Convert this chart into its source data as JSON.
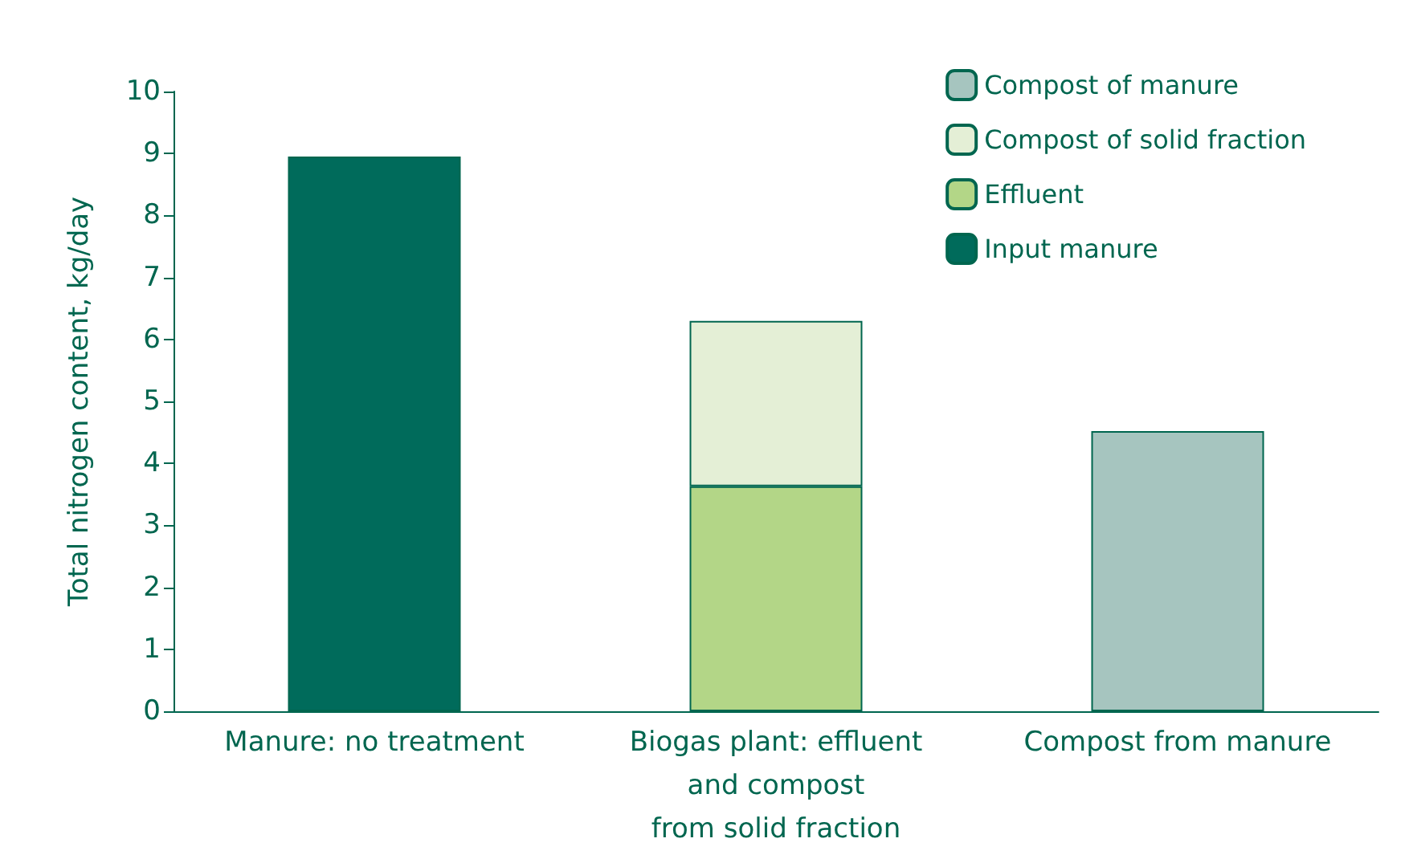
{
  "chart_data": {
    "type": "bar",
    "stacked": true,
    "ylabel": "Total nitrogen content, kg/day",
    "categories": [
      "Manure: no treatment",
      "Biogas plant: effluent\nand compost\nfrom solid fraction",
      "Compost from manure"
    ],
    "series": [
      {
        "name": "Input manure",
        "color": "#006b5b",
        "values": [
          8.95,
          null,
          null
        ]
      },
      {
        "name": "Effluent",
        "color": "#b3d687",
        "values": [
          null,
          3.63,
          null
        ]
      },
      {
        "name": "Compost of solid fraction",
        "color": "#e4efd6",
        "values": [
          null,
          2.67,
          null
        ]
      },
      {
        "name": "Compost of manure",
        "color": "#a6c5bf",
        "values": [
          null,
          null,
          4.52
        ]
      }
    ],
    "ylim": [
      0,
      10
    ],
    "yticks": [
      0,
      1,
      2,
      3,
      4,
      5,
      6,
      7,
      8,
      9,
      10
    ],
    "grid": false,
    "legend": "top right"
  }
}
